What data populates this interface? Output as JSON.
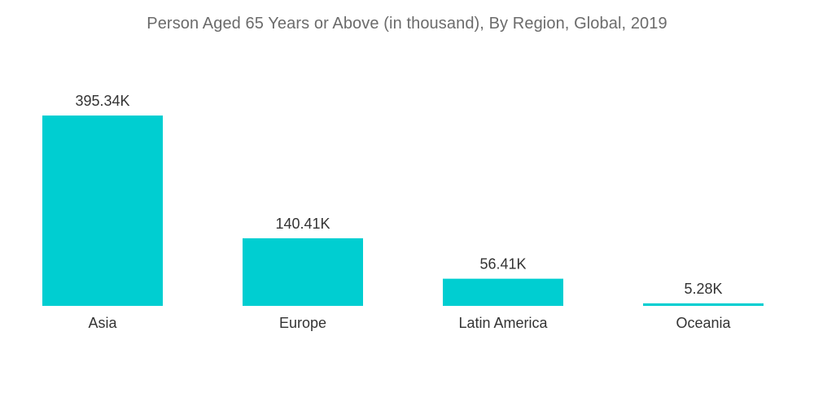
{
  "chart_data": {
    "type": "bar",
    "title": "Person Aged 65 Years or Above (in thousand), By Region, Global, 2019",
    "categories": [
      "Asia",
      "Europe",
      "Latin America",
      "Oceania"
    ],
    "values": [
      395.34,
      140.41,
      56.41,
      5.28
    ],
    "data_labels": [
      "395.34K",
      "140.41K",
      "56.41K",
      "5.28K"
    ],
    "xlabel": "",
    "ylabel": "",
    "ylim": [
      0,
      395.34
    ],
    "grid": false,
    "legend": "none",
    "bar_color": "#00ced1"
  }
}
